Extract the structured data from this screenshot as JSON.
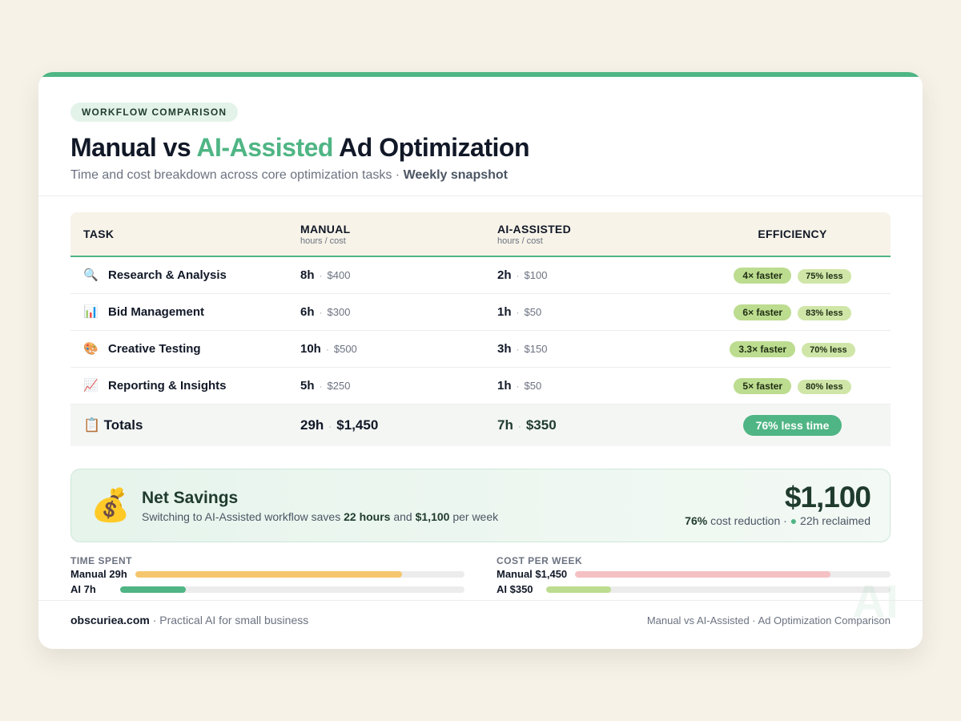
{
  "header": {
    "pill": "WORKFLOW COMPARISON",
    "title_part1": "Manual vs ",
    "title_accent": "AI-Assisted",
    "title_part2": " Ad Optimization",
    "subtitle": "Time and cost breakdown across core optimization tasks · ",
    "subtitle_strong": "Weekly snapshot"
  },
  "table": {
    "columns": {
      "task": "TASK",
      "manual": "MANUAL",
      "manual_sub": "hours / cost",
      "ai": "AI-ASSISTED",
      "ai_sub": "hours / cost",
      "efficiency": "EFFICIENCY"
    },
    "rows": [
      {
        "icon": "🔍",
        "icon_name": "magnifier-icon",
        "task": "Research & Analysis",
        "manual_h": "8h",
        "manual_c": "$400",
        "ai_h": "2h",
        "ai_c": "$100",
        "faster": "4× faster",
        "less": "75% less"
      },
      {
        "icon": "📊",
        "icon_name": "bar-chart-icon",
        "task": "Bid Management",
        "manual_h": "6h",
        "manual_c": "$300",
        "ai_h": "1h",
        "ai_c": "$50",
        "faster": "6× faster",
        "less": "83% less"
      },
      {
        "icon": "🎨",
        "icon_name": "palette-icon",
        "task": "Creative Testing",
        "manual_h": "10h",
        "manual_c": "$500",
        "ai_h": "3h",
        "ai_c": "$150",
        "faster": "3.3× faster",
        "less": "70% less"
      },
      {
        "icon": "📈",
        "icon_name": "trend-chart-icon",
        "task": "Reporting & Insights",
        "manual_h": "5h",
        "manual_c": "$250",
        "ai_h": "1h",
        "ai_c": "$50",
        "faster": "5× faster",
        "less": "80% less"
      }
    ],
    "totals": {
      "icon": "📋",
      "label": "Totals",
      "manual_h": "29h",
      "manual_c": "$1,450",
      "ai_h": "7h",
      "ai_c": "$350",
      "badge": "76% less time"
    }
  },
  "savings": {
    "icon": "💰",
    "title": "Net Savings",
    "desc_1": "Switching to AI-Assisted workflow saves ",
    "desc_hours": "22 hours",
    "desc_2": " and ",
    "desc_money": "$1,100",
    "desc_3": " per week",
    "amount": "$1,100",
    "meta_pct": "76%",
    "meta_1": " cost reduction · ",
    "meta_dot": "●",
    "meta_2": " 22h reclaimed"
  },
  "bars": {
    "time": {
      "title": "TIME SPENT",
      "manual_label": "Manual 29h",
      "ai_label": "AI 7h",
      "manual_fraction": 0.81,
      "ai_fraction": 0.19,
      "manual_color": "#f6c66e",
      "ai_color": "#4fb584"
    },
    "cost": {
      "title": "COST PER WEEK",
      "manual_label": "Manual $1,450",
      "ai_label": "AI $350",
      "manual_fraction": 0.81,
      "ai_fraction": 0.19,
      "manual_color": "#f4c0c4",
      "ai_color": "#bcdc8f"
    }
  },
  "footer": {
    "brand": "obscuriea.com",
    "tagline": " · Practical AI for small business",
    "right": "Manual vs AI-Assisted · Ad Optimization Comparison",
    "watermark": "AI"
  }
}
